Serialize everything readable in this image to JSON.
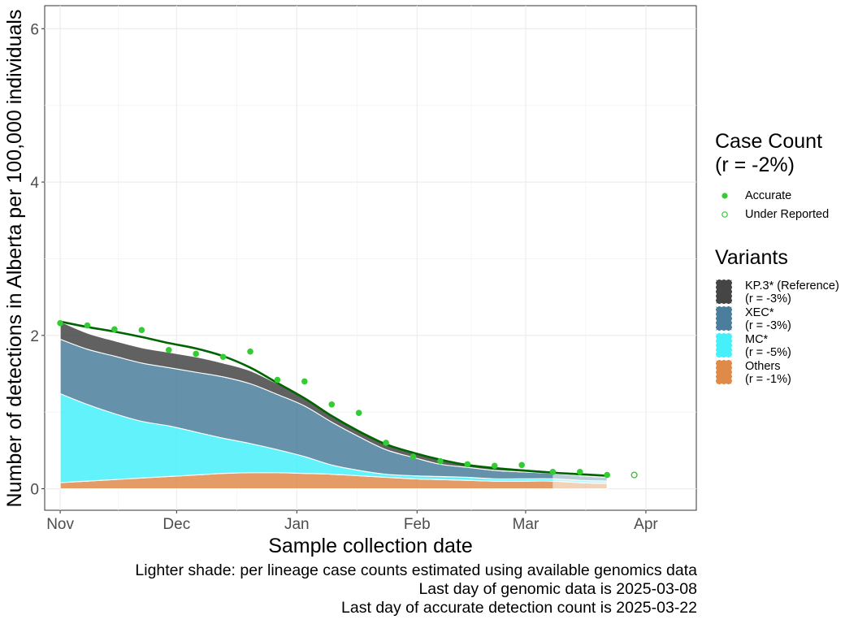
{
  "chart_data": {
    "type": "area",
    "xlabel": "Sample collection date",
    "ylabel": "Number of detections in Alberta per 100,000 individuals",
    "xlim": [
      "2024-10-28",
      "2025-04-14"
    ],
    "ylim": [
      -0.28,
      6.3
    ],
    "y_ticks": [
      0,
      2,
      4,
      6
    ],
    "x_ticks": [
      {
        "date": "2024-11-01",
        "label": "Nov"
      },
      {
        "date": "2024-12-01",
        "label": "Dec"
      },
      {
        "date": "2025-01-01",
        "label": "Jan"
      },
      {
        "date": "2025-02-01",
        "label": "Feb"
      },
      {
        "date": "2025-03-01",
        "label": "Mar"
      },
      {
        "date": "2025-04-01",
        "label": "Apr"
      }
    ],
    "grid": true,
    "x": [
      "2024-11-01",
      "2024-11-08",
      "2024-11-15",
      "2024-11-22",
      "2024-11-29",
      "2024-12-06",
      "2024-12-13",
      "2024-12-20",
      "2024-12-27",
      "2025-01-03",
      "2025-01-10",
      "2025-01-17",
      "2025-01-24",
      "2025-01-31",
      "2025-02-07",
      "2025-02-14",
      "2025-02-21",
      "2025-02-28",
      "2025-03-08",
      "2025-03-15",
      "2025-03-22"
    ],
    "genomic_data_end": "2025-03-08",
    "series": [
      {
        "name": "Others",
        "legend_label": "Others",
        "legend_r": "(r = -1%)",
        "color": "#e08a4a",
        "values": [
          0.08,
          0.1,
          0.12,
          0.14,
          0.16,
          0.18,
          0.2,
          0.21,
          0.21,
          0.2,
          0.19,
          0.17,
          0.15,
          0.13,
          0.12,
          0.11,
          0.1,
          0.1,
          0.1,
          0.08,
          0.07
        ]
      },
      {
        "name": "MC*",
        "legend_label": "MC*",
        "legend_r": "(r = -5%)",
        "color": "#45f0fa",
        "values": [
          1.16,
          1.0,
          0.86,
          0.74,
          0.66,
          0.56,
          0.46,
          0.38,
          0.3,
          0.22,
          0.12,
          0.07,
          0.04,
          0.04,
          0.04,
          0.04,
          0.03,
          0.03,
          0.03,
          0.03,
          0.03
        ]
      },
      {
        "name": "XEC*",
        "legend_label": "XEC*",
        "legend_r": "(r = -3%)",
        "color": "#4a7e9c",
        "values": [
          0.71,
          0.72,
          0.75,
          0.76,
          0.76,
          0.78,
          0.8,
          0.78,
          0.72,
          0.66,
          0.56,
          0.44,
          0.32,
          0.24,
          0.16,
          0.13,
          0.11,
          0.09,
          0.07,
          0.06,
          0.05
        ]
      },
      {
        "name": "KP.3* (Reference)",
        "legend_label": "KP.3* (Reference)",
        "legend_r": "(r = -3%)",
        "color": "#454545",
        "values": [
          0.23,
          0.21,
          0.2,
          0.2,
          0.2,
          0.2,
          0.18,
          0.17,
          0.14,
          0.12,
          0.1,
          0.08,
          0.07,
          0.06,
          0.06,
          0.05,
          0.04,
          0.04,
          0.03,
          0.03,
          0.02
        ]
      }
    ],
    "trend_line": {
      "color": "#006400",
      "values": [
        2.18,
        2.11,
        2.05,
        1.98,
        1.9,
        1.83,
        1.73,
        1.58,
        1.38,
        1.18,
        0.95,
        0.75,
        0.58,
        0.47,
        0.38,
        0.31,
        0.27,
        0.24,
        0.21,
        0.19,
        0.17
      ]
    },
    "points_accurate": [
      {
        "x": "2024-11-01",
        "y": 2.16
      },
      {
        "x": "2024-11-08",
        "y": 2.13
      },
      {
        "x": "2024-11-15",
        "y": 2.08
      },
      {
        "x": "2024-11-22",
        "y": 2.07
      },
      {
        "x": "2024-11-29",
        "y": 1.81
      },
      {
        "x": "2024-12-06",
        "y": 1.76
      },
      {
        "x": "2024-12-13",
        "y": 1.72
      },
      {
        "x": "2024-12-20",
        "y": 1.79
      },
      {
        "x": "2024-12-27",
        "y": 1.42
      },
      {
        "x": "2025-01-03",
        "y": 1.4
      },
      {
        "x": "2025-01-10",
        "y": 1.1
      },
      {
        "x": "2025-01-17",
        "y": 0.99
      },
      {
        "x": "2025-01-24",
        "y": 0.6
      },
      {
        "x": "2025-01-31",
        "y": 0.42
      },
      {
        "x": "2025-02-07",
        "y": 0.36
      },
      {
        "x": "2025-02-14",
        "y": 0.32
      },
      {
        "x": "2025-02-21",
        "y": 0.3
      },
      {
        "x": "2025-02-28",
        "y": 0.31
      },
      {
        "x": "2025-03-08",
        "y": 0.22
      },
      {
        "x": "2025-03-15",
        "y": 0.22
      },
      {
        "x": "2025-03-22",
        "y": 0.18
      }
    ],
    "points_under_reported": [
      {
        "x": "2025-03-29",
        "y": 0.18
      }
    ],
    "point_color": "#33cc33"
  },
  "legend": {
    "case_title_line1": "Case Count",
    "case_title_line2": "(r = -2%)",
    "accurate_label": "Accurate",
    "under_reported_label": "Under Reported",
    "variants_title": "Variants"
  },
  "caption": {
    "line1": "Lighter shade: per lineage case counts estimated using available genomics data",
    "line2": "Last day of genomic data is 2025-03-08",
    "line3": "Last day of accurate detection count is 2025-03-22"
  }
}
